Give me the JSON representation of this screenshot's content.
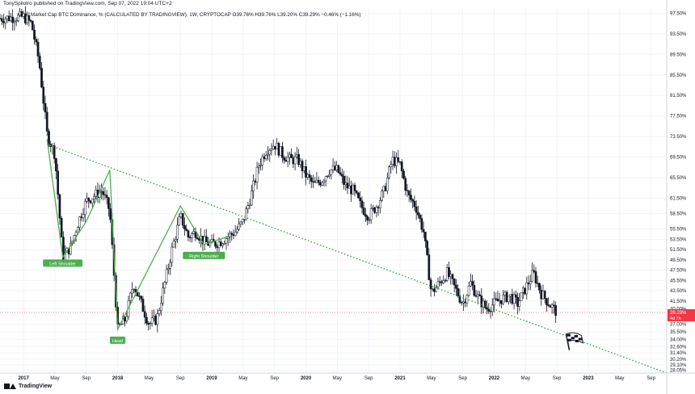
{
  "header": {
    "publisher": "TonySpilotro published on TradingView.com, Sep 07, 2022 19:04 UTC+2",
    "symbol_title": "Market Cap BTC Dominance, % (CALCULATED BY TRADINGVIEW), 1W, CRYPTOCAP",
    "ohlc": "O39.76% H39.76% L39.20% C39.29% −0.46% (−1.16%)"
  },
  "brand": {
    "text": "TradingView"
  },
  "chart_data": {
    "type": "candlestick",
    "title": "Market Cap BTC Dominance, % (CALCULATED BY TRADINGVIEW), 1W, CRYPTOCAP",
    "y_unit": "%",
    "ylim": [
      27.5,
      98.5
    ],
    "y_ticks": [
      "97.50%",
      "93.50%",
      "89.50%",
      "85.50%",
      "81.50%",
      "77.50%",
      "73.50%",
      "69.50%",
      "65.50%",
      "61.50%",
      "58.50%",
      "55.50%",
      "53.50%",
      "51.50%",
      "49.50%",
      "47.50%",
      "45.50%",
      "43.50%",
      "41.50%",
      "40.00%",
      "37.00%",
      "35.50%",
      "34.00%",
      "32.60%",
      "31.40%",
      "30.20%",
      "29.10%",
      "28.05%"
    ],
    "x_ticks": [
      "2017",
      "May",
      "Sep",
      "2018",
      "May",
      "Sep",
      "2019",
      "May",
      "Sep",
      "2020",
      "May",
      "Sep",
      "2021",
      "May",
      "Sep",
      "2022",
      "May",
      "Sep",
      "2023",
      "May",
      "Sep"
    ],
    "x_range": [
      "2016-10",
      "2023-11"
    ],
    "close_path": [
      [
        "2016-10",
        96.5
      ],
      [
        "2017-01",
        96.8
      ],
      [
        "2017-02",
        95.5
      ],
      [
        "2017-03",
        88
      ],
      [
        "2017-04",
        74
      ],
      [
        "2017-05",
        70
      ],
      [
        "2017-06",
        50
      ],
      [
        "2017-07",
        52
      ],
      [
        "2017-08",
        57
      ],
      [
        "2017-09",
        61
      ],
      [
        "2017-10",
        62
      ],
      [
        "2017-11",
        63
      ],
      [
        "2017-12",
        59
      ],
      [
        "2018-01",
        36
      ],
      [
        "2018-02",
        38
      ],
      [
        "2018-03",
        45
      ],
      [
        "2018-04",
        41
      ],
      [
        "2018-05",
        37
      ],
      [
        "2018-06",
        38
      ],
      [
        "2018-07",
        45
      ],
      [
        "2018-08",
        52
      ],
      [
        "2018-09",
        58
      ],
      [
        "2018-10",
        54
      ],
      [
        "2018-11",
        55
      ],
      [
        "2018-12",
        53
      ],
      [
        "2019-01",
        52.5
      ],
      [
        "2019-02",
        53
      ],
      [
        "2019-03",
        54
      ],
      [
        "2019-04",
        55
      ],
      [
        "2019-05",
        57
      ],
      [
        "2019-06",
        62
      ],
      [
        "2019-07",
        68
      ],
      [
        "2019-08",
        71
      ],
      [
        "2019-09",
        72
      ],
      [
        "2019-10",
        70
      ],
      [
        "2019-11",
        69
      ],
      [
        "2019-12",
        69
      ],
      [
        "2020-01",
        66
      ],
      [
        "2020-02",
        64
      ],
      [
        "2020-03",
        65
      ],
      [
        "2020-04",
        67
      ],
      [
        "2020-05",
        67
      ],
      [
        "2020-06",
        64
      ],
      [
        "2020-07",
        63
      ],
      [
        "2020-08",
        60
      ],
      [
        "2020-09",
        58
      ],
      [
        "2020-10",
        60
      ],
      [
        "2020-11",
        63
      ],
      [
        "2020-12",
        69
      ],
      [
        "2021-01",
        68
      ],
      [
        "2021-02",
        62
      ],
      [
        "2021-03",
        60
      ],
      [
        "2021-04",
        55
      ],
      [
        "2021-05",
        43
      ],
      [
        "2021-06",
        45
      ],
      [
        "2021-07",
        47
      ],
      [
        "2021-08",
        44
      ],
      [
        "2021-09",
        41
      ],
      [
        "2021-10",
        45
      ],
      [
        "2021-11",
        42
      ],
      [
        "2021-12",
        40
      ],
      [
        "2022-01",
        41
      ],
      [
        "2022-02",
        42
      ],
      [
        "2022-03",
        42.5
      ],
      [
        "2022-04",
        41
      ],
      [
        "2022-05",
        44
      ],
      [
        "2022-06",
        47
      ],
      [
        "2022-07",
        43
      ],
      [
        "2022-08",
        41
      ],
      [
        "2022-09",
        39.29
      ]
    ],
    "last_value_label": "39.29%",
    "countdown_label": "4d 7h",
    "current_price_line": 39.29,
    "annotations": [
      {
        "text": "Left Shoulder",
        "date": "2017-06",
        "value": 51
      },
      {
        "text": "Head",
        "date": "2018-01",
        "value": 36
      },
      {
        "text": "Right Shoulder",
        "date": "2018-12",
        "value": 52.5
      }
    ],
    "pattern_lines": [
      [
        [
          "2017-04",
          73
        ],
        [
          "2017-06",
          50
        ],
        [
          "2017-09",
          57
        ],
        [
          "2017-12",
          67
        ],
        [
          "2018-01",
          36
        ],
        [
          "2018-09",
          60
        ],
        [
          "2018-12",
          52.5
        ],
        [
          "2019-03",
          54
        ]
      ]
    ],
    "trendline": {
      "from": [
        "2017-04",
        72
      ],
      "to": [
        "2023-11",
        27.5
      ],
      "style": "dotted",
      "color": "#2e9c2e"
    },
    "target_marker": {
      "icon": "checkered-flag-icon",
      "date": "2022-11",
      "value": 33.2
    },
    "colors": {
      "up": "#ffffff",
      "down": "#131722",
      "pattern": "#4caf50",
      "trendline": "#2e9c2e",
      "last_badge": "#f23645"
    },
    "grid": true
  }
}
